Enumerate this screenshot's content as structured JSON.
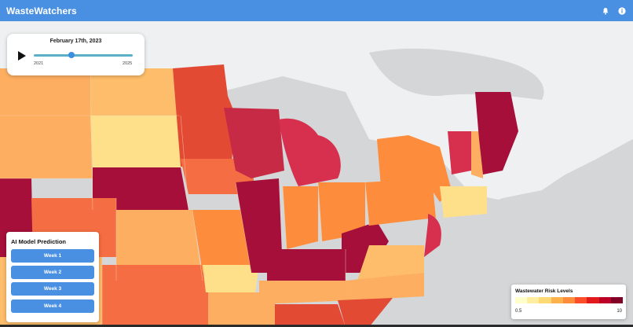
{
  "header": {
    "title": "WasteWatchers",
    "icons": [
      "bell-icon",
      "info-icon"
    ]
  },
  "timeline": {
    "date_label": "February 17th, 2023",
    "start_year": "2021",
    "end_year": "2025",
    "position_fraction": 0.38
  },
  "ai_panel": {
    "title": "AI Model Prediction",
    "buttons": [
      "Week 1",
      "Week 2",
      "Week 3",
      "Week 4"
    ]
  },
  "legend": {
    "title": "Wastewater Risk Levels",
    "min": "0.5",
    "max": "10",
    "colors": [
      "#ffffcc",
      "#ffeda0",
      "#fed976",
      "#feb24c",
      "#fd8d3c",
      "#fc4e2a",
      "#e31a1c",
      "#bd0026",
      "#800026"
    ]
  },
  "colors": {
    "header": "#4a90e2",
    "button": "#4a90e2",
    "water": "#d4d6d8",
    "land": "#eef0f1"
  }
}
